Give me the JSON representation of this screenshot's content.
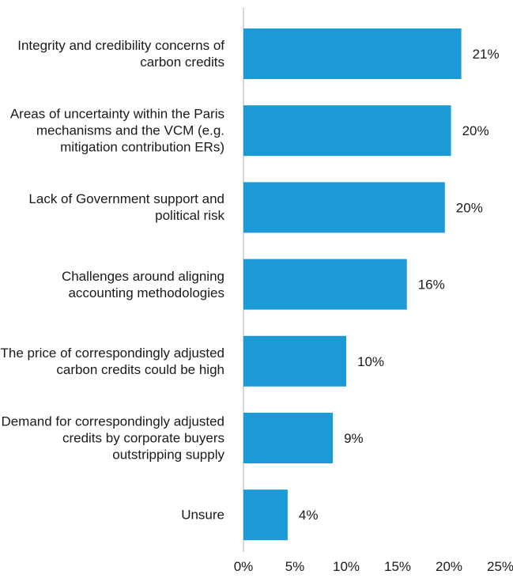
{
  "chart_data": {
    "type": "bar",
    "orientation": "horizontal",
    "categories": [
      "Integrity and credibility concerns of carbon credits",
      "Areas of uncertainty within the Paris mechanisms and the VCM (e.g. mitigation contribution ERs)",
      "Lack of Government support and political risk",
      "Challenges around aligning accounting methodologies",
      "The price of correspondingly adjusted carbon credits could be high",
      "Demand for correspondingly adjusted credits by corporate buyers outstripping supply",
      "Unsure"
    ],
    "values": [
      21.2,
      20.2,
      19.6,
      15.9,
      10.0,
      8.7,
      4.3
    ],
    "data_labels": [
      "21%",
      "20%",
      "20%",
      "16%",
      "10%",
      "9%",
      "4%"
    ],
    "xlim": [
      0,
      25
    ],
    "xticks": [
      0,
      5,
      10,
      15,
      20,
      25
    ],
    "xtick_labels": [
      "0%",
      "5%",
      "10%",
      "15%",
      "20%",
      "25%"
    ],
    "bar_color": "#1b9ad6",
    "axis_color": "#cccccc",
    "grid": false,
    "legend": "none",
    "title": "",
    "xlabel": "",
    "ylabel": ""
  }
}
